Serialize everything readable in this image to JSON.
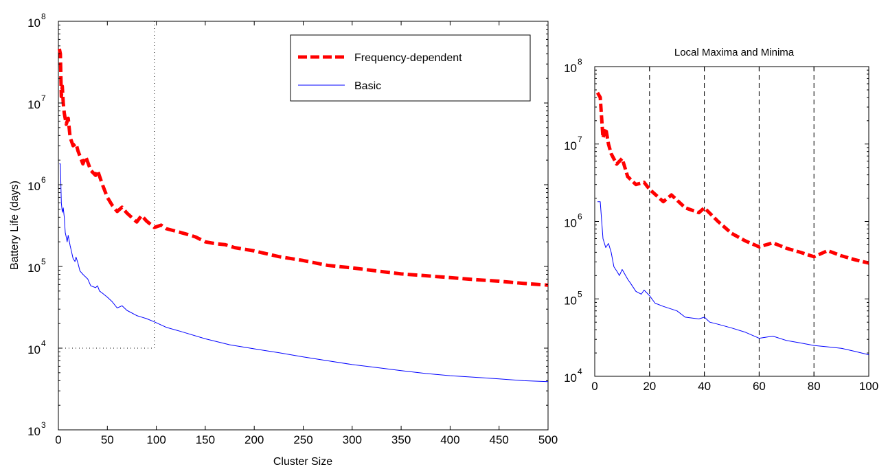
{
  "chart_data": [
    {
      "type": "line",
      "xlabel": "Cluster Size",
      "ylabel": "Battery Life (days)",
      "x_scale": "linear",
      "y_scale": "log",
      "xlim": [
        0,
        500
      ],
      "ylim": [
        1000,
        100000000
      ],
      "x_ticks": [
        {
          "value": 0,
          "label": "0"
        },
        {
          "value": 50,
          "label": "50"
        },
        {
          "value": 100,
          "label": "100"
        },
        {
          "value": 150,
          "label": "150"
        },
        {
          "value": 200,
          "label": "200"
        },
        {
          "value": 250,
          "label": "250"
        },
        {
          "value": 300,
          "label": "300"
        },
        {
          "value": 350,
          "label": "350"
        },
        {
          "value": 400,
          "label": "400"
        },
        {
          "value": 450,
          "label": "450"
        },
        {
          "value": 500,
          "label": "500"
        }
      ],
      "y_ticks": [
        {
          "value": 1000,
          "base": "10",
          "exp": "3"
        },
        {
          "value": 10000,
          "base": "10",
          "exp": "4"
        },
        {
          "value": 100000,
          "base": "10",
          "exp": "5"
        },
        {
          "value": 1000000,
          "base": "10",
          "exp": "6"
        },
        {
          "value": 10000000,
          "base": "10",
          "exp": "7"
        },
        {
          "value": 100000000,
          "base": "10",
          "exp": "8"
        }
      ],
      "grid": false,
      "legend_position": "top-right",
      "reference_lines": [
        {
          "orientation": "vertical",
          "x": 98,
          "from": 10000,
          "to": 100000000,
          "style": "dotted"
        },
        {
          "orientation": "horizontal",
          "y": 10000,
          "from": 0,
          "to": 98,
          "style": "dotted"
        }
      ],
      "series": [
        {
          "name": "Frequency-dependent",
          "color": "#ff0000",
          "style": "dashed-thick",
          "points": [
            [
              1,
              46000000
            ],
            [
              2,
              40000000
            ],
            [
              3,
              12000000
            ],
            [
              4,
              16000000
            ],
            [
              5,
              10000000
            ],
            [
              6,
              7500000
            ],
            [
              8,
              5500000
            ],
            [
              10,
              6500000
            ],
            [
              12,
              3800000
            ],
            [
              15,
              3000000
            ],
            [
              18,
              3200000
            ],
            [
              20,
              2600000
            ],
            [
              25,
              1800000
            ],
            [
              28,
              2200000
            ],
            [
              33,
              1500000
            ],
            [
              38,
              1300000
            ],
            [
              40,
              1500000
            ],
            [
              45,
              1000000
            ],
            [
              50,
              700000
            ],
            [
              55,
              560000
            ],
            [
              60,
              470000
            ],
            [
              65,
              530000
            ],
            [
              70,
              450000
            ],
            [
              80,
              350000
            ],
            [
              85,
              420000
            ],
            [
              90,
              360000
            ],
            [
              98,
              300000
            ],
            [
              105,
              320000
            ],
            [
              110,
              290000
            ],
            [
              120,
              270000
            ],
            [
              130,
              250000
            ],
            [
              140,
              230000
            ],
            [
              150,
              200000
            ],
            [
              160,
              190000
            ],
            [
              170,
              185000
            ],
            [
              180,
              170000
            ],
            [
              200,
              155000
            ],
            [
              225,
              132000
            ],
            [
              250,
              118000
            ],
            [
              275,
              103000
            ],
            [
              300,
              96000
            ],
            [
              325,
              88000
            ],
            [
              350,
              81000
            ],
            [
              375,
              77000
            ],
            [
              400,
              73000
            ],
            [
              425,
              69000
            ],
            [
              450,
              66000
            ],
            [
              475,
              62000
            ],
            [
              500,
              59000
            ]
          ]
        },
        {
          "name": "Basic",
          "color": "#0000ff",
          "style": "solid",
          "points": [
            [
              1,
              1800000
            ],
            [
              2,
              1800000
            ],
            [
              3,
              600000
            ],
            [
              4,
              460000
            ],
            [
              5,
              520000
            ],
            [
              6,
              400000
            ],
            [
              7,
              260000
            ],
            [
              8,
              230000
            ],
            [
              9,
              200000
            ],
            [
              10,
              240000
            ],
            [
              12,
              180000
            ],
            [
              13,
              160000
            ],
            [
              15,
              125000
            ],
            [
              17,
              115000
            ],
            [
              18,
              130000
            ],
            [
              20,
              110000
            ],
            [
              22,
              88000
            ],
            [
              25,
              80000
            ],
            [
              30,
              70000
            ],
            [
              33,
              58000
            ],
            [
              38,
              55000
            ],
            [
              40,
              58000
            ],
            [
              42,
              50000
            ],
            [
              45,
              47000
            ],
            [
              50,
              42000
            ],
            [
              55,
              37000
            ],
            [
              60,
              31000
            ],
            [
              65,
              33000
            ],
            [
              70,
              29000
            ],
            [
              80,
              25000
            ],
            [
              85,
              24000
            ],
            [
              90,
              23000
            ],
            [
              98,
              21000
            ],
            [
              110,
              18000
            ],
            [
              125,
              16000
            ],
            [
              150,
              13000
            ],
            [
              175,
              11000
            ],
            [
              200,
              9800
            ],
            [
              225,
              8800
            ],
            [
              250,
              7800
            ],
            [
              275,
              7000
            ],
            [
              300,
              6300
            ],
            [
              325,
              5800
            ],
            [
              350,
              5300
            ],
            [
              375,
              4900
            ],
            [
              400,
              4600
            ],
            [
              425,
              4400
            ],
            [
              450,
              4200
            ],
            [
              475,
              4000
            ],
            [
              500,
              3900
            ]
          ]
        }
      ]
    },
    {
      "type": "line",
      "title": "Local Maxima and Minima",
      "x_scale": "linear",
      "y_scale": "log",
      "xlim": [
        0,
        100
      ],
      "ylim": [
        10000,
        100000000
      ],
      "x_ticks": [
        {
          "value": 0,
          "label": "0"
        },
        {
          "value": 20,
          "label": "20"
        },
        {
          "value": 40,
          "label": "40"
        },
        {
          "value": 60,
          "label": "60"
        },
        {
          "value": 80,
          "label": "80"
        },
        {
          "value": 100,
          "label": "100"
        }
      ],
      "y_ticks": [
        {
          "value": 10000,
          "base": "10",
          "exp": "4"
        },
        {
          "value": 100000,
          "base": "10",
          "exp": "5"
        },
        {
          "value": 1000000,
          "base": "10",
          "exp": "6"
        },
        {
          "value": 10000000,
          "base": "10",
          "exp": "7"
        },
        {
          "value": 100000000,
          "base": "10",
          "exp": "8"
        }
      ],
      "grid": false,
      "reference_lines": [
        {
          "orientation": "vertical",
          "x": 20,
          "style": "dashed"
        },
        {
          "orientation": "vertical",
          "x": 40,
          "style": "dashed"
        },
        {
          "orientation": "vertical",
          "x": 60,
          "style": "dashed"
        },
        {
          "orientation": "vertical",
          "x": 80,
          "style": "dashed"
        }
      ],
      "series": [
        {
          "color": "#ff0000",
          "style": "dashed-thick",
          "points": [
            [
              1,
              46000000
            ],
            [
              2,
              40000000
            ],
            [
              3,
              12000000
            ],
            [
              4,
              16000000
            ],
            [
              5,
              10000000
            ],
            [
              6,
              7500000
            ],
            [
              8,
              5500000
            ],
            [
              10,
              6500000
            ],
            [
              12,
              3800000
            ],
            [
              15,
              3000000
            ],
            [
              18,
              3200000
            ],
            [
              20,
              2600000
            ],
            [
              25,
              1800000
            ],
            [
              28,
              2200000
            ],
            [
              33,
              1500000
            ],
            [
              38,
              1300000
            ],
            [
              40,
              1500000
            ],
            [
              45,
              1000000
            ],
            [
              50,
              700000
            ],
            [
              55,
              560000
            ],
            [
              60,
              470000
            ],
            [
              65,
              530000
            ],
            [
              70,
              450000
            ],
            [
              75,
              400000
            ],
            [
              80,
              350000
            ],
            [
              85,
              420000
            ],
            [
              90,
              360000
            ],
            [
              95,
              320000
            ],
            [
              100,
              290000
            ]
          ]
        },
        {
          "color": "#0000ff",
          "style": "solid",
          "points": [
            [
              1,
              1800000
            ],
            [
              2,
              1800000
            ],
            [
              3,
              600000
            ],
            [
              4,
              460000
            ],
            [
              5,
              520000
            ],
            [
              6,
              400000
            ],
            [
              7,
              260000
            ],
            [
              8,
              230000
            ],
            [
              9,
              200000
            ],
            [
              10,
              240000
            ],
            [
              12,
              180000
            ],
            [
              13,
              160000
            ],
            [
              15,
              125000
            ],
            [
              17,
              115000
            ],
            [
              18,
              130000
            ],
            [
              20,
              110000
            ],
            [
              22,
              88000
            ],
            [
              25,
              80000
            ],
            [
              30,
              70000
            ],
            [
              33,
              58000
            ],
            [
              38,
              55000
            ],
            [
              40,
              58000
            ],
            [
              42,
              50000
            ],
            [
              45,
              47000
            ],
            [
              50,
              42000
            ],
            [
              55,
              37000
            ],
            [
              60,
              31000
            ],
            [
              65,
              33000
            ],
            [
              70,
              29000
            ],
            [
              75,
              27000
            ],
            [
              80,
              25000
            ],
            [
              85,
              24000
            ],
            [
              90,
              23000
            ],
            [
              95,
              21000
            ],
            [
              100,
              19000
            ]
          ]
        }
      ]
    }
  ]
}
